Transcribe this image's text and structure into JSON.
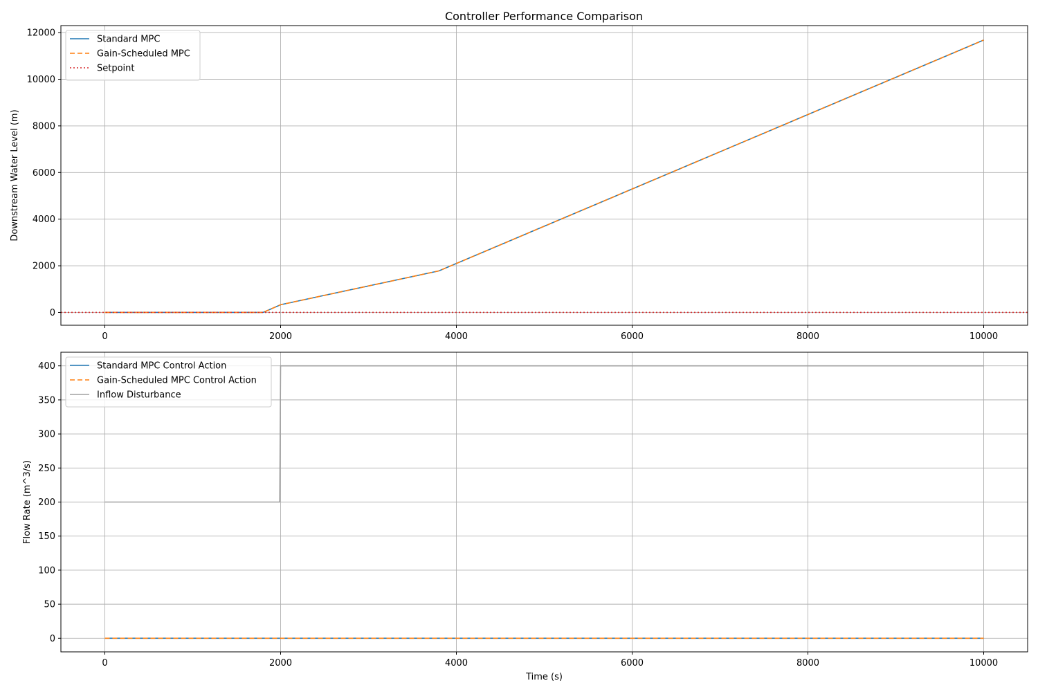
{
  "chart_data": [
    {
      "type": "line",
      "title": "Controller Performance Comparison",
      "xlabel": "",
      "ylabel": "Downstream Water Level (m)",
      "xlim": [
        -500,
        10500
      ],
      "ylim": [
        -550,
        12300
      ],
      "xticks": [
        0,
        2000,
        4000,
        6000,
        8000,
        10000
      ],
      "yticks": [
        0,
        2000,
        4000,
        6000,
        8000,
        10000,
        12000
      ],
      "grid": true,
      "legend_position": "top-left",
      "series": [
        {
          "name": "Standard MPC",
          "color": "#1f77b4",
          "style": "solid",
          "x": [
            0,
            1800,
            2000,
            3800,
            10000
          ],
          "y": [
            0,
            0,
            330,
            1780,
            11680
          ]
        },
        {
          "name": "Gain-Scheduled MPC",
          "color": "#ff7f0e",
          "style": "dashed",
          "x": [
            0,
            1800,
            2000,
            3800,
            10000
          ],
          "y": [
            0,
            0,
            330,
            1780,
            11680
          ]
        },
        {
          "name": "Setpoint",
          "color": "#d62728",
          "style": "dotted",
          "hline": 0
        }
      ]
    },
    {
      "type": "line",
      "title": "",
      "xlabel": "Time (s)",
      "ylabel": "Flow Rate (m^3/s)",
      "xlim": [
        -500,
        10500
      ],
      "ylim": [
        -20,
        420
      ],
      "xticks": [
        0,
        2000,
        4000,
        6000,
        8000,
        10000
      ],
      "yticks": [
        0,
        50,
        100,
        150,
        200,
        250,
        300,
        350,
        400
      ],
      "grid": true,
      "legend_position": "top-left",
      "series": [
        {
          "name": "Standard MPC Control Action",
          "color": "#1f77b4",
          "style": "solid",
          "x": [
            0,
            10000
          ],
          "y": [
            0,
            0
          ]
        },
        {
          "name": "Gain-Scheduled MPC Control Action",
          "color": "#ff7f0e",
          "style": "dashed",
          "x": [
            0,
            10000
          ],
          "y": [
            0,
            0
          ]
        },
        {
          "name": "Inflow Disturbance",
          "color": "#a0a0a0",
          "style": "solid",
          "x": [
            0,
            1990,
            2000,
            10000
          ],
          "y": [
            200,
            200,
            400,
            400
          ]
        }
      ]
    }
  ]
}
